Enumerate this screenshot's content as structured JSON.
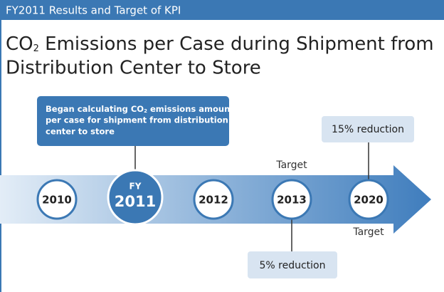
{
  "header": {
    "title": "FY2011 Results and Target of KPI"
  },
  "title": {
    "line1": [
      "CO",
      "2",
      " Emissions per Case during Shipment from"
    ],
    "line2": "Distribution Center to Store"
  },
  "callout_2011": {
    "lines": [
      [
        "Began calculating CO",
        "2",
        " emissions amount"
      ],
      "per case for shipment from distribution",
      "center to store"
    ]
  },
  "timeline": [
    {
      "year": "2010"
    },
    {
      "prefix": "FY",
      "year": "2011"
    },
    {
      "year": "2012"
    },
    {
      "year": "2013",
      "note": "Target",
      "callout": "5% reduction"
    },
    {
      "year": "2020",
      "note": "Target",
      "callout": "15% reduction"
    }
  ]
}
